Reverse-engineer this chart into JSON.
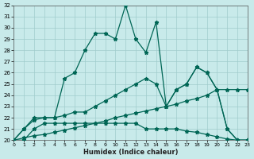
{
  "xlabel": "Humidex (Indice chaleur)",
  "xlim": [
    0,
    23
  ],
  "ylim": [
    20,
    32
  ],
  "xtick_labels": [
    "0",
    "1",
    "2",
    "3",
    "4",
    "5",
    "6",
    "7",
    "8",
    "9",
    "1011",
    "12",
    "1314",
    "1516",
    "1718",
    "1920",
    "2122",
    "23"
  ],
  "yticks": [
    20,
    21,
    22,
    23,
    24,
    25,
    26,
    27,
    28,
    29,
    30,
    31,
    32
  ],
  "bg_color": "#c8eaea",
  "grid_color": "#a0cccc",
  "line_color": "#006655",
  "line1_x": [
    0,
    1,
    2,
    3,
    4,
    5,
    6,
    7,
    8,
    9,
    10,
    11,
    12,
    13,
    14,
    15,
    16,
    17,
    18,
    19,
    20,
    21,
    22,
    23
  ],
  "line1_y": [
    20,
    21,
    22,
    22,
    22,
    25.5,
    26,
    28,
    29.5,
    29.5,
    29,
    32,
    29,
    27.8,
    30.5,
    23,
    24.5,
    25,
    26.5,
    26,
    24.5,
    21,
    20,
    20
  ],
  "line2_x": [
    0,
    1,
    2,
    3,
    4,
    5,
    6,
    7,
    8,
    9,
    10,
    11,
    12,
    13,
    14,
    15,
    16,
    17,
    18,
    19,
    20,
    21,
    22,
    23
  ],
  "line2_y": [
    20,
    21,
    21.8,
    22,
    22,
    22.2,
    22.5,
    22.5,
    23,
    23.5,
    24,
    24.5,
    25,
    25.5,
    25,
    23,
    24.5,
    25,
    26.5,
    26,
    24.5,
    21,
    20,
    20
  ],
  "line3_x": [
    0,
    1,
    2,
    3,
    4,
    5,
    6,
    7,
    8,
    9,
    10,
    11,
    12,
    13,
    14,
    15,
    16,
    17,
    18,
    19,
    20,
    21,
    22,
    23
  ],
  "line3_y": [
    20,
    20.2,
    20.4,
    20.5,
    20.7,
    20.9,
    21.1,
    21.3,
    21.5,
    21.7,
    22,
    22.2,
    22.4,
    22.6,
    22.8,
    23,
    23.2,
    23.5,
    23.7,
    24,
    24.5,
    24.5,
    24.5,
    24.5
  ],
  "line4_x": [
    0,
    1,
    2,
    3,
    4,
    5,
    6,
    7,
    8,
    9,
    10,
    11,
    12,
    13,
    14,
    15,
    16,
    17,
    18,
    19,
    20,
    21,
    22,
    23
  ],
  "line4_y": [
    20,
    20,
    21,
    21.5,
    21.5,
    21.5,
    21.5,
    21.5,
    21.5,
    21.5,
    21.5,
    21.5,
    21.5,
    21,
    21,
    21,
    21,
    20.8,
    20.7,
    20.5,
    20.3,
    20.1,
    20,
    20
  ]
}
